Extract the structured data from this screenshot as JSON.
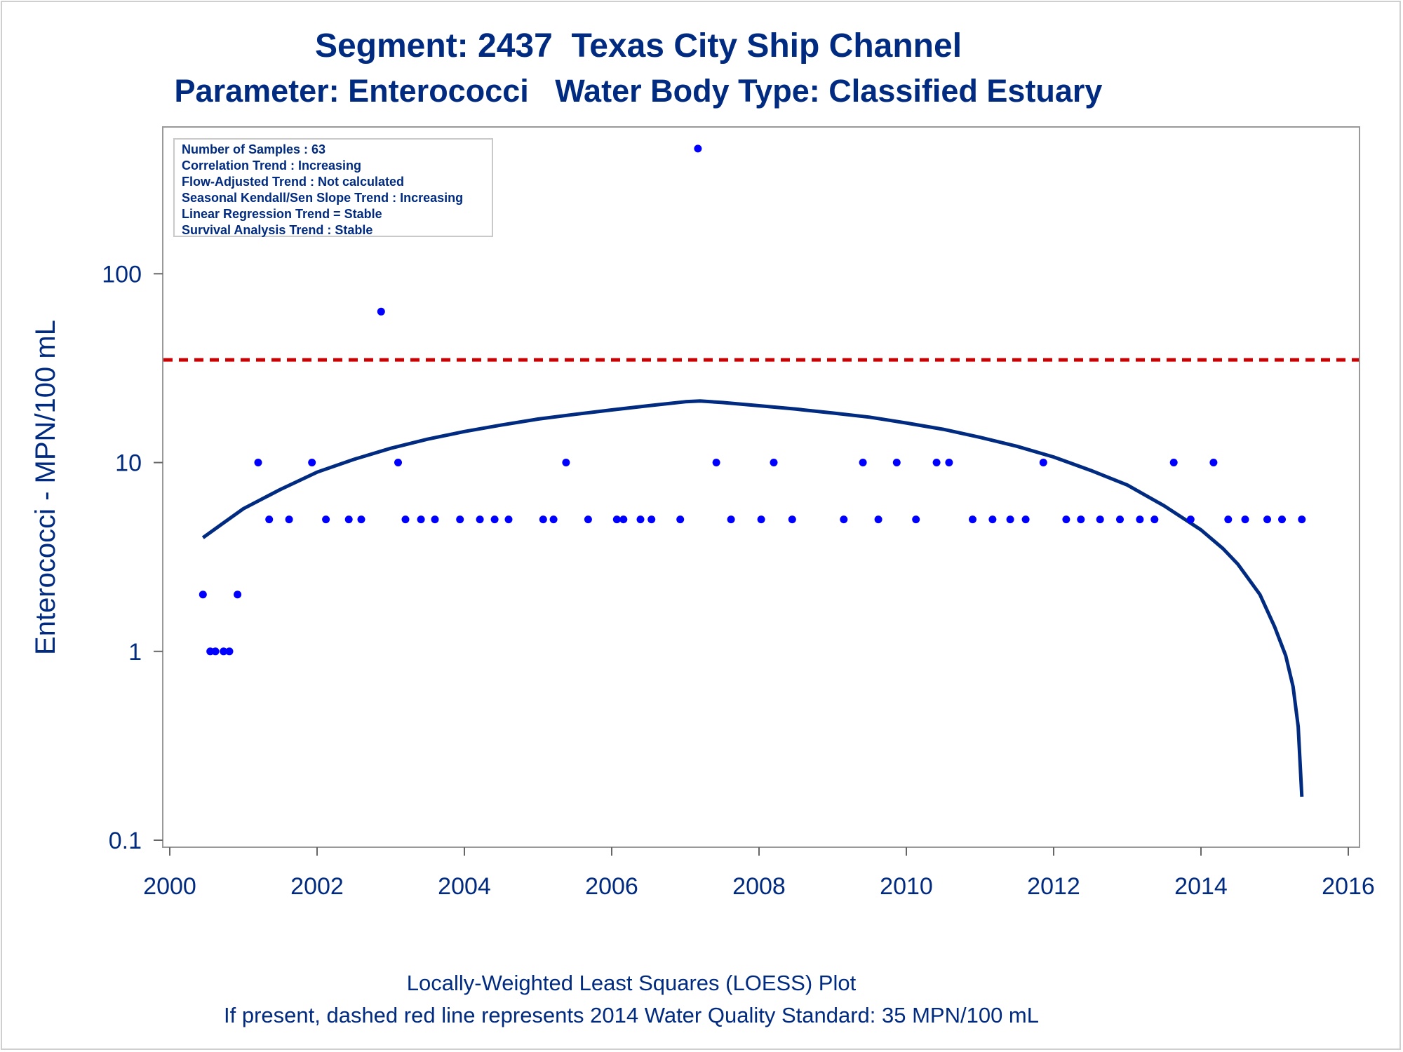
{
  "chart_data": {
    "type": "scatter",
    "title": "Segment: 2437  Texas City Ship Channel",
    "subtitle": "Parameter: Enterococci   Water Body Type: Classified Estuary",
    "ylabel": "Enterococci - MPN/100 mL",
    "xlabel": "",
    "footnotes": [
      "Locally-Weighted Least Squares (LOESS) Plot",
      "If present, dashed red line represents 2014 Water Quality Standard: 35 MPN/100 mL"
    ],
    "y_scale": "log",
    "ylim": [
      0.1,
      550
    ],
    "xlim": [
      2000,
      2016
    ],
    "x_ticks": [
      2000,
      2002,
      2004,
      2006,
      2008,
      2010,
      2012,
      2014,
      2016
    ],
    "y_ticks": [
      0.1,
      1,
      10,
      100
    ],
    "y_tick_labels": [
      "0.1",
      "1",
      "10",
      "100"
    ],
    "grid": false,
    "colors": {
      "points": "#0000ff",
      "loess": "#002b80",
      "standard": "#cc0000",
      "text": "#002b80"
    },
    "standard_line": {
      "value": 35,
      "style": "dashed"
    },
    "stats_box": {
      "placement": "top-left",
      "lines": [
        "Number of Samples : 63",
        "Correlation Trend : Increasing",
        "Flow-Adjusted Trend : Not calculated",
        "Seasonal Kendall/Sen Slope Trend : Increasing",
        "Linear Regression Trend = Stable",
        "Survival Analysis Trend : Stable"
      ]
    },
    "series": [
      {
        "type": "scatter",
        "points": [
          [
            2000.45,
            2
          ],
          [
            2000.55,
            1
          ],
          [
            2000.62,
            1
          ],
          [
            2000.73,
            1
          ],
          [
            2000.81,
            1
          ],
          [
            2000.92,
            2
          ],
          [
            2001.2,
            10
          ],
          [
            2001.35,
            5
          ],
          [
            2001.62,
            5
          ],
          [
            2001.93,
            10
          ],
          [
            2002.12,
            5
          ],
          [
            2002.43,
            5
          ],
          [
            2002.6,
            5
          ],
          [
            2002.87,
            63
          ],
          [
            2003.1,
            10
          ],
          [
            2003.2,
            5
          ],
          [
            2003.41,
            5
          ],
          [
            2003.6,
            5
          ],
          [
            2003.94,
            5
          ],
          [
            2004.21,
            5
          ],
          [
            2004.41,
            5
          ],
          [
            2004.6,
            5
          ],
          [
            2005.07,
            5
          ],
          [
            2005.21,
            5
          ],
          [
            2005.38,
            10
          ],
          [
            2005.68,
            5
          ],
          [
            2006.07,
            5
          ],
          [
            2006.16,
            5
          ],
          [
            2006.39,
            5
          ],
          [
            2006.54,
            5
          ],
          [
            2006.93,
            5
          ],
          [
            2007.17,
            460
          ],
          [
            2007.42,
            10
          ],
          [
            2007.62,
            5
          ],
          [
            2008.03,
            5
          ],
          [
            2008.2,
            10
          ],
          [
            2008.45,
            5
          ],
          [
            2009.15,
            5
          ],
          [
            2009.41,
            10
          ],
          [
            2009.62,
            5
          ],
          [
            2009.87,
            10
          ],
          [
            2010.13,
            5
          ],
          [
            2010.41,
            10
          ],
          [
            2010.58,
            10
          ],
          [
            2010.9,
            5
          ],
          [
            2011.17,
            5
          ],
          [
            2011.41,
            5
          ],
          [
            2011.62,
            5
          ],
          [
            2011.86,
            10
          ],
          [
            2012.17,
            5
          ],
          [
            2012.37,
            5
          ],
          [
            2012.63,
            5
          ],
          [
            2012.9,
            5
          ],
          [
            2013.17,
            5
          ],
          [
            2013.37,
            5
          ],
          [
            2013.63,
            10
          ],
          [
            2013.86,
            5
          ],
          [
            2014.17,
            10
          ],
          [
            2014.37,
            5
          ],
          [
            2014.6,
            5
          ],
          [
            2014.9,
            5
          ],
          [
            2015.1,
            5
          ],
          [
            2015.37,
            5
          ]
        ]
      },
      {
        "type": "line",
        "points": [
          [
            2000.45,
            4.0
          ],
          [
            2000.7,
            4.7
          ],
          [
            2001.0,
            5.7
          ],
          [
            2001.5,
            7.2
          ],
          [
            2002.0,
            8.9
          ],
          [
            2002.5,
            10.4
          ],
          [
            2003.0,
            11.9
          ],
          [
            2003.5,
            13.3
          ],
          [
            2004.0,
            14.6
          ],
          [
            2004.5,
            15.8
          ],
          [
            2005.0,
            17.0
          ],
          [
            2005.5,
            18.0
          ],
          [
            2006.0,
            19.0
          ],
          [
            2006.5,
            20.0
          ],
          [
            2007.0,
            21.0
          ],
          [
            2007.2,
            21.2
          ],
          [
            2007.5,
            20.8
          ],
          [
            2008.0,
            20.0
          ],
          [
            2008.5,
            19.2
          ],
          [
            2009.0,
            18.3
          ],
          [
            2009.5,
            17.4
          ],
          [
            2010.0,
            16.2
          ],
          [
            2010.5,
            15.0
          ],
          [
            2011.0,
            13.6
          ],
          [
            2011.5,
            12.2
          ],
          [
            2012.0,
            10.7
          ],
          [
            2012.5,
            9.1
          ],
          [
            2013.0,
            7.6
          ],
          [
            2013.5,
            5.9
          ],
          [
            2014.0,
            4.4
          ],
          [
            2014.3,
            3.5
          ],
          [
            2014.5,
            2.9
          ],
          [
            2014.8,
            2.0
          ],
          [
            2015.0,
            1.35
          ],
          [
            2015.15,
            0.95
          ],
          [
            2015.25,
            0.65
          ],
          [
            2015.32,
            0.4
          ],
          [
            2015.37,
            0.17
          ]
        ]
      }
    ]
  }
}
